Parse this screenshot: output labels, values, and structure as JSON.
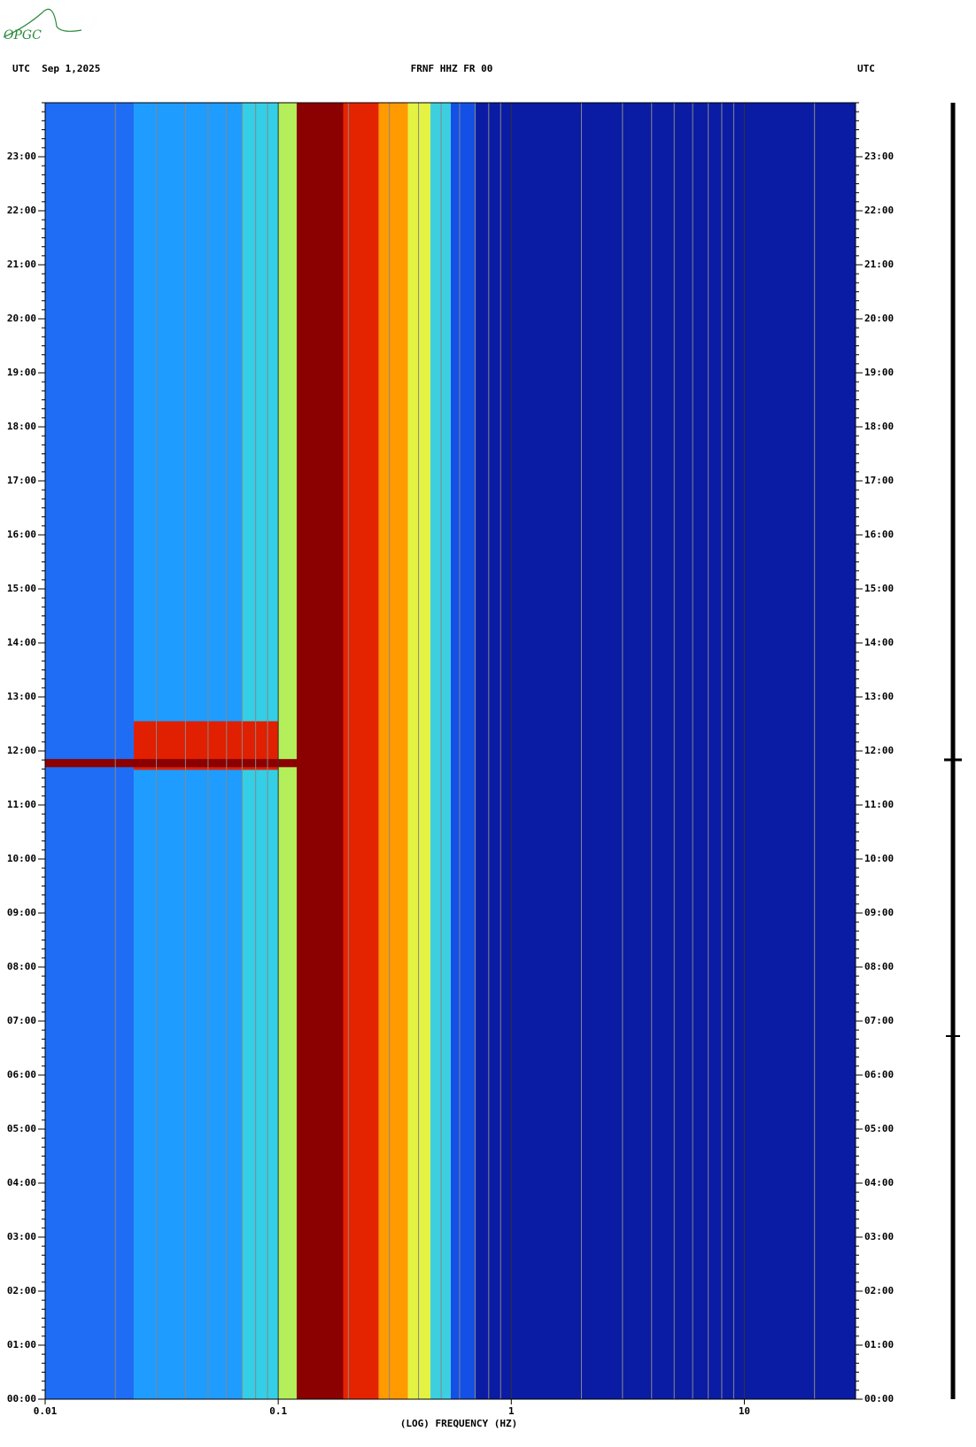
{
  "logo": "OPGC",
  "chart_data": {
    "type": "spectrogram",
    "title": "FRNF HHZ FR 00",
    "left_header": "UTC  Sep 1,2025",
    "right_header": "UTC",
    "xlabel": "(LOG) FREQUENCY (HZ)",
    "xscale": "log",
    "xlim": [
      0.01,
      30
    ],
    "xticks": [
      0.01,
      0.1,
      1,
      10
    ],
    "ylim": [
      0,
      24
    ],
    "yticks": [
      {
        "value": 0,
        "label": "00:00"
      },
      {
        "value": 1,
        "label": "01:00"
      },
      {
        "value": 2,
        "label": "02:00"
      },
      {
        "value": 3,
        "label": "03:00"
      },
      {
        "value": 4,
        "label": "04:00"
      },
      {
        "value": 5,
        "label": "05:00"
      },
      {
        "value": 6,
        "label": "06:00"
      },
      {
        "value": 7,
        "label": "07:00"
      },
      {
        "value": 8,
        "label": "08:00"
      },
      {
        "value": 9,
        "label": "09:00"
      },
      {
        "value": 10,
        "label": "10:00"
      },
      {
        "value": 11,
        "label": "11:00"
      },
      {
        "value": 12,
        "label": "12:00"
      },
      {
        "value": 13,
        "label": "13:00"
      },
      {
        "value": 14,
        "label": "14:00"
      },
      {
        "value": 15,
        "label": "15:00"
      },
      {
        "value": 16,
        "label": "16:00"
      },
      {
        "value": 17,
        "label": "17:00"
      },
      {
        "value": 18,
        "label": "18:00"
      },
      {
        "value": 19,
        "label": "19:00"
      },
      {
        "value": 20,
        "label": "20:00"
      },
      {
        "value": 21,
        "label": "21:00"
      },
      {
        "value": 22,
        "label": "22:00"
      },
      {
        "value": 23,
        "label": "23:00"
      }
    ],
    "bands": [
      {
        "from": 0.01,
        "to": 0.024,
        "color": "#1f6cf5"
      },
      {
        "from": 0.024,
        "to": 0.07,
        "color": "#1e9cff"
      },
      {
        "from": 0.07,
        "to": 0.1,
        "color": "#34cfe6"
      },
      {
        "from": 0.1,
        "to": 0.12,
        "color": "#b4ee5a"
      },
      {
        "from": 0.12,
        "to": 0.19,
        "color": "#8b0000"
      },
      {
        "from": 0.19,
        "to": 0.27,
        "color": "#e42400"
      },
      {
        "from": 0.27,
        "to": 0.36,
        "color": "#ff9a00"
      },
      {
        "from": 0.36,
        "to": 0.45,
        "color": "#e4f244"
      },
      {
        "from": 0.45,
        "to": 0.55,
        "color": "#3ccfe0"
      },
      {
        "from": 0.55,
        "to": 0.7,
        "color": "#1450e6"
      },
      {
        "from": 0.7,
        "to": 30,
        "color": "#0a1ca4"
      }
    ],
    "events": [
      {
        "from": 0.024,
        "to": 0.1,
        "start": 11.65,
        "end": 12.55,
        "color": "#e02000"
      },
      {
        "from": 0.01,
        "to": 0.12,
        "start": 11.7,
        "end": 11.85,
        "color": "#8b0000"
      }
    ],
    "grid": true
  }
}
